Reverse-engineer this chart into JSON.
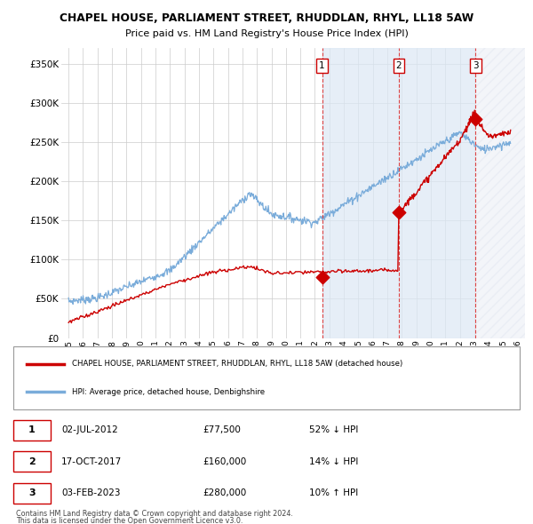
{
  "title": "CHAPEL HOUSE, PARLIAMENT STREET, RHUDDLAN, RHYL, LL18 5AW",
  "subtitle": "Price paid vs. HM Land Registry's House Price Index (HPI)",
  "legend_label_red": "CHAPEL HOUSE, PARLIAMENT STREET, RHUDDLAN, RHYL, LL18 5AW (detached house)",
  "legend_label_blue": "HPI: Average price, detached house, Denbighshire",
  "footer1": "Contains HM Land Registry data © Crown copyright and database right 2024.",
  "footer2": "This data is licensed under the Open Government Licence v3.0.",
  "transactions": [
    {
      "num": 1,
      "date": "02-JUL-2012",
      "price": "£77,500",
      "hpi": "52% ↓ HPI",
      "x": 2012.5
    },
    {
      "num": 2,
      "date": "17-OCT-2017",
      "price": "£160,000",
      "hpi": "14% ↓ HPI",
      "x": 2017.79
    },
    {
      "num": 3,
      "date": "03-FEB-2023",
      "price": "£280,000",
      "hpi": "10% ↑ HPI",
      "x": 2023.09
    }
  ],
  "transaction_prices": [
    77500,
    160000,
    280000
  ],
  "ylim": [
    0,
    370000
  ],
  "xlim_start": 1994.5,
  "xlim_end": 2026.5,
  "bg_color": "#eef3fb",
  "plot_bg": "#ffffff",
  "grid_color": "#cccccc",
  "red_color": "#cc0000",
  "blue_color": "#7aacda",
  "shade_blue": "#dce8f5",
  "shade_hatch": "#e0e0e0"
}
